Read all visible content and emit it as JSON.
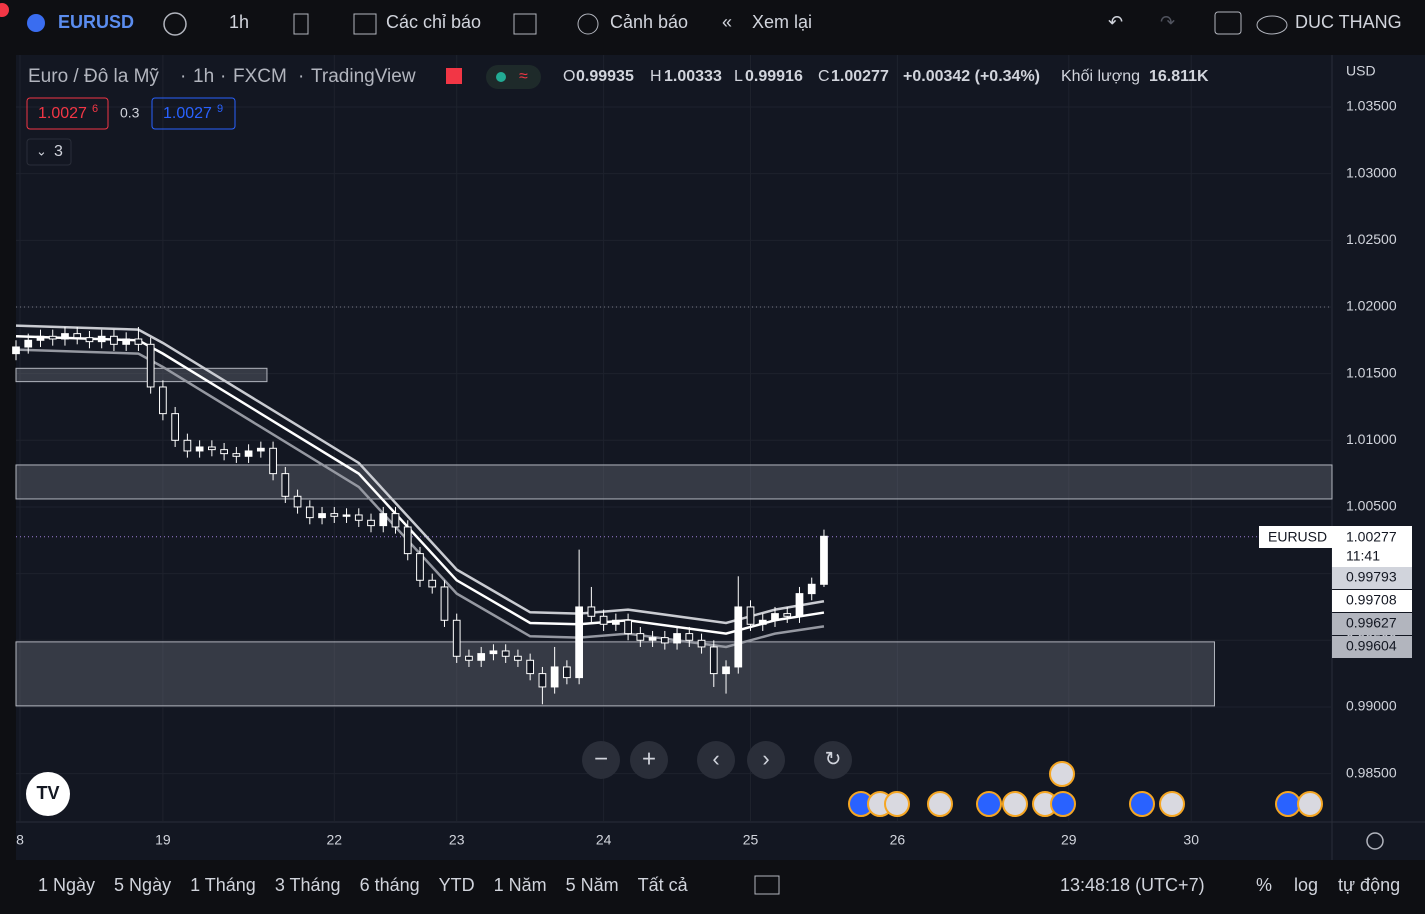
{
  "toolbar": {
    "symbol": "EURUSD",
    "interval": "1h",
    "indicators": "Các chỉ báo",
    "alerts": "Cảnh báo",
    "replay": "Xem lại",
    "user": "DUC THANG"
  },
  "legend": {
    "name": "Euro / Đô la Mỹ",
    "interval": "1h",
    "exchange": "FXCM",
    "source": "TradingView",
    "o_label": "O",
    "open": 0.99935,
    "h_label": "H",
    "high": 1.00333,
    "l_label": "L",
    "low": 0.99916,
    "c_label": "C",
    "close": 1.00277,
    "change": "+0.00342 (+0.34%)",
    "volume_label": "Khối lượng",
    "volume": "16.811K",
    "bid": "1.0027",
    "bid_sup": "6",
    "spread": 0.3,
    "ask": "1.0027",
    "ask_sup": "9",
    "indicator_count": 3
  },
  "price_tag": {
    "symbol": "EURUSD",
    "price": 1.00277,
    "countdown": "11:41",
    "levels": [
      0.99793,
      0.99708,
      0.99627,
      0.99604
    ]
  },
  "chart_data": {
    "type": "candlestick",
    "currency": "USD",
    "xlim": [
      0,
      215
    ],
    "ylim": [
      0.98137,
      1.0389
    ],
    "xticks": [
      {
        "value": 0.65,
        "label": "8"
      },
      {
        "value": 24,
        "label": "19"
      },
      {
        "value": 52,
        "label": "22"
      },
      {
        "value": 72,
        "label": "23"
      },
      {
        "value": 96,
        "label": "24"
      },
      {
        "value": 120,
        "label": "25"
      },
      {
        "value": 144,
        "label": "26"
      },
      {
        "value": 172,
        "label": "29"
      },
      {
        "value": 192,
        "label": "30"
      }
    ],
    "yticks": [
      {
        "value": 0.985,
        "label": "0.98500"
      },
      {
        "value": 0.99,
        "label": "0.99000"
      },
      {
        "value": 0.995,
        "label": "0.99500"
      },
      {
        "value": 1.0,
        "label": "1.00000"
      },
      {
        "value": 1.005,
        "label": "1.00500"
      },
      {
        "value": 1.01,
        "label": "1.01000"
      },
      {
        "value": 1.015,
        "label": "1.01500"
      },
      {
        "value": 1.02,
        "label": "1.02000"
      },
      {
        "value": 1.025,
        "label": "1.02500"
      },
      {
        "value": 1.03,
        "label": "1.03000"
      },
      {
        "value": 1.035,
        "label": "1.03500"
      }
    ],
    "grid": true,
    "color": "#ffffff",
    "x": [
      0,
      2,
      4,
      6,
      8,
      10,
      12,
      14,
      16,
      18,
      20,
      22,
      24,
      26,
      28,
      30,
      32,
      34,
      36,
      38,
      40,
      42,
      44,
      46,
      48,
      50,
      52,
      54,
      56,
      58,
      60,
      62,
      64,
      66,
      68,
      70,
      72,
      74,
      76,
      78,
      80,
      82,
      84,
      86,
      88,
      90,
      92,
      94,
      96,
      98,
      100,
      102,
      104,
      106,
      108,
      110,
      112,
      114,
      116,
      118,
      120,
      122,
      124,
      126,
      128,
      130,
      132
    ],
    "open": [
      1.0165,
      1.017,
      1.0175,
      1.0178,
      1.0176,
      1.018,
      1.0177,
      1.0174,
      1.0178,
      1.0172,
      1.0176,
      1.0172,
      1.014,
      1.012,
      1.01,
      1.0092,
      1.0095,
      1.0093,
      1.009,
      1.0088,
      1.0092,
      1.0094,
      1.0075,
      1.0058,
      1.005,
      1.0042,
      1.0045,
      1.0043,
      1.0044,
      1.004,
      1.0036,
      1.0045,
      1.0035,
      1.0015,
      0.9995,
      0.999,
      0.9965,
      0.9938,
      0.9935,
      0.994,
      0.9942,
      0.9938,
      0.9935,
      0.9925,
      0.9915,
      0.993,
      0.9922,
      0.9975,
      0.9968,
      0.9962,
      0.9965,
      0.9955,
      0.995,
      0.9952,
      0.9948,
      0.9955,
      0.995,
      0.9945,
      0.9925,
      0.993,
      0.9975,
      0.9962,
      0.9965,
      0.997,
      0.9968,
      0.9985,
      0.9992
    ],
    "high": [
      1.0175,
      1.018,
      1.0183,
      1.0183,
      1.0185,
      1.0185,
      1.0182,
      1.0183,
      1.0183,
      1.0181,
      1.0185,
      1.0177,
      1.0145,
      1.0125,
      1.0105,
      1.01,
      1.01,
      1.0098,
      1.0095,
      1.0097,
      1.0099,
      1.0099,
      1.008,
      1.0063,
      1.0055,
      1.005,
      1.005,
      1.0049,
      1.0049,
      1.0045,
      1.005,
      1.005,
      1.004,
      1.002,
      1.0,
      0.9995,
      0.997,
      0.9943,
      0.9945,
      0.9947,
      0.9947,
      0.9943,
      0.994,
      0.993,
      0.9945,
      0.9935,
      1.0018,
      0.999,
      0.9973,
      0.997,
      0.997,
      0.996,
      0.9957,
      0.9957,
      0.996,
      0.996,
      0.9955,
      0.995,
      0.9935,
      0.9998,
      0.998,
      0.997,
      0.9975,
      0.9975,
      0.999,
      0.9997,
      1.0033
    ],
    "low": [
      1.016,
      1.0165,
      1.017,
      1.0171,
      1.0171,
      1.0172,
      1.0169,
      1.0169,
      1.0167,
      1.0167,
      1.0167,
      1.0135,
      1.0115,
      1.0095,
      1.0087,
      1.0087,
      1.0088,
      1.0085,
      1.0083,
      1.0083,
      1.0087,
      1.007,
      1.0053,
      1.0045,
      1.0037,
      1.0037,
      1.0038,
      1.0038,
      1.0035,
      1.0031,
      1.0031,
      1.003,
      1.001,
      0.999,
      0.9985,
      0.996,
      0.9933,
      0.993,
      0.993,
      0.9935,
      0.9933,
      0.993,
      0.992,
      0.9902,
      0.991,
      0.9917,
      0.9917,
      0.9963,
      0.9957,
      0.9957,
      0.995,
      0.9945,
      0.9945,
      0.9943,
      0.9943,
      0.9945,
      0.994,
      0.9915,
      0.991,
      0.9925,
      0.9957,
      0.9957,
      0.996,
      0.9963,
      0.9963,
      0.998,
      0.999
    ],
    "close": [
      1.017,
      1.0175,
      1.0178,
      1.0176,
      1.018,
      1.0177,
      1.0174,
      1.0178,
      1.0172,
      1.0176,
      1.0172,
      1.014,
      1.012,
      1.01,
      1.0092,
      1.0095,
      1.0093,
      1.009,
      1.0088,
      1.0092,
      1.0094,
      1.0075,
      1.0058,
      1.005,
      1.0042,
      1.0045,
      1.0043,
      1.0044,
      1.004,
      1.0036,
      1.0045,
      1.0035,
      1.0015,
      0.9995,
      0.999,
      0.9965,
      0.9938,
      0.9935,
      0.994,
      0.9942,
      0.9938,
      0.9935,
      0.9925,
      0.9915,
      0.993,
      0.9922,
      0.9975,
      0.9968,
      0.9962,
      0.9965,
      0.9955,
      0.995,
      0.9952,
      0.9948,
      0.9955,
      0.995,
      0.9945,
      0.9925,
      0.993,
      0.9975,
      0.9962,
      0.9965,
      0.997,
      0.9968,
      0.9985,
      0.9992,
      1.0028
    ],
    "ma_x": [
      0,
      20,
      24,
      40,
      56,
      72,
      84,
      92,
      100,
      116,
      124,
      132
    ],
    "ma": [
      {
        "color": "#c9cbd1",
        "values": [
          1.0186,
          1.0183,
          1.0173,
          1.0128,
          1.0083,
          1.0003,
          0.9971,
          0.997,
          0.9973,
          0.9963,
          0.9973,
          0.99793
        ]
      },
      {
        "color": "#ffffff",
        "values": [
          1.0178,
          1.0175,
          1.0165,
          1.012,
          1.0075,
          0.9995,
          0.9963,
          0.9962,
          0.9965,
          0.9955,
          0.9965,
          0.99708
        ]
      },
      {
        "color": "#9598a1",
        "values": [
          1.0168,
          1.0165,
          1.0155,
          1.011,
          1.0065,
          0.9985,
          0.9953,
          0.9952,
          0.9955,
          0.9945,
          0.9955,
          0.99604
        ]
      }
    ],
    "zones": [
      {
        "top": 1.0154,
        "bottom": 1.0144,
        "x0": 0,
        "x1": 41
      },
      {
        "top": 1.00815,
        "bottom": 1.0056,
        "x0": 0,
        "x1": 215
      },
      {
        "top": 0.99488,
        "bottom": 0.99008,
        "x0": 0,
        "x1": 195.8
      }
    ],
    "dotted_levels": [
      1.02,
      1.00277
    ]
  },
  "bottom_bar": {
    "ranges": [
      "1 Ngày",
      "5 Ngày",
      "1 Tháng",
      "3 Tháng",
      "6 tháng",
      "YTD",
      "1 Năm",
      "5 Năm",
      "Tất cả"
    ],
    "clock": "13:48:18 (UTC+7)",
    "percent": "%",
    "log": "log",
    "auto": "tự động"
  }
}
